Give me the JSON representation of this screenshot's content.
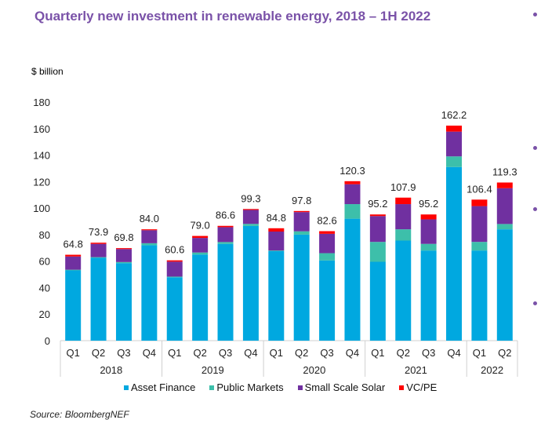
{
  "chart_data": {
    "type": "bar",
    "stacked": true,
    "title": "Quarterly new investment in renewable energy, 2018 – 1H 2022",
    "ylabel": "$ billion",
    "xlabel": "",
    "ylim": [
      0,
      180
    ],
    "yticks": [
      0,
      20,
      40,
      60,
      80,
      100,
      120,
      140,
      160,
      180
    ],
    "grid": false,
    "legend_position": "bottom",
    "categories": [
      "Q1",
      "Q2",
      "Q3",
      "Q4",
      "Q1",
      "Q2",
      "Q3",
      "Q4",
      "Q1",
      "Q2",
      "Q3",
      "Q4",
      "Q1",
      "Q2",
      "Q3",
      "Q4",
      "Q1",
      "Q2"
    ],
    "groups": [
      {
        "label": "2018",
        "count": 4
      },
      {
        "label": "2019",
        "count": 4
      },
      {
        "label": "2020",
        "count": 4
      },
      {
        "label": "2021",
        "count": 4
      },
      {
        "label": "2022",
        "count": 2
      }
    ],
    "series": [
      {
        "name": "Asset Finance",
        "color": "#00a8e0",
        "values": [
          53.0,
          62.5,
          58.5,
          72.0,
          47.8,
          65.0,
          73.0,
          86.5,
          67.5,
          80.0,
          60.5,
          92.0,
          59.5,
          75.5,
          68.0,
          131.0,
          68.0,
          84.0
        ]
      },
      {
        "name": "Public Markets",
        "color": "#3dbfaa",
        "values": [
          0.5,
          0.5,
          0.8,
          1.5,
          0.5,
          1.5,
          1.4,
          1.6,
          0.5,
          2.5,
          5.5,
          11.0,
          15.0,
          8.5,
          5.0,
          8.0,
          6.5,
          4.0
        ]
      },
      {
        "name": "Small Scale Solar",
        "color": "#7030a0",
        "values": [
          10.0,
          10.0,
          9.8,
          9.8,
          11.3,
          11.0,
          11.2,
          10.5,
          14.3,
          14.5,
          14.6,
          15.0,
          19.5,
          19.0,
          18.5,
          18.7,
          27.0,
          27.0
        ]
      },
      {
        "name": "VC/PE",
        "color": "#ff0000",
        "values": [
          1.3,
          0.9,
          0.7,
          0.7,
          1.0,
          1.5,
          1.0,
          0.7,
          2.5,
          0.8,
          2.0,
          2.3,
          1.2,
          4.9,
          3.7,
          4.5,
          4.9,
          4.3
        ]
      }
    ],
    "totals": [
      "64.8",
      "73.9",
      "69.8",
      "84.0",
      "60.6",
      "79.0",
      "86.6",
      "99.3",
      "84.8",
      "97.8",
      "82.6",
      "120.3",
      "95.2",
      "107.9",
      "95.2",
      "162.2",
      "106.4",
      "119.3"
    ]
  },
  "source": "Source: BloombergNEF"
}
